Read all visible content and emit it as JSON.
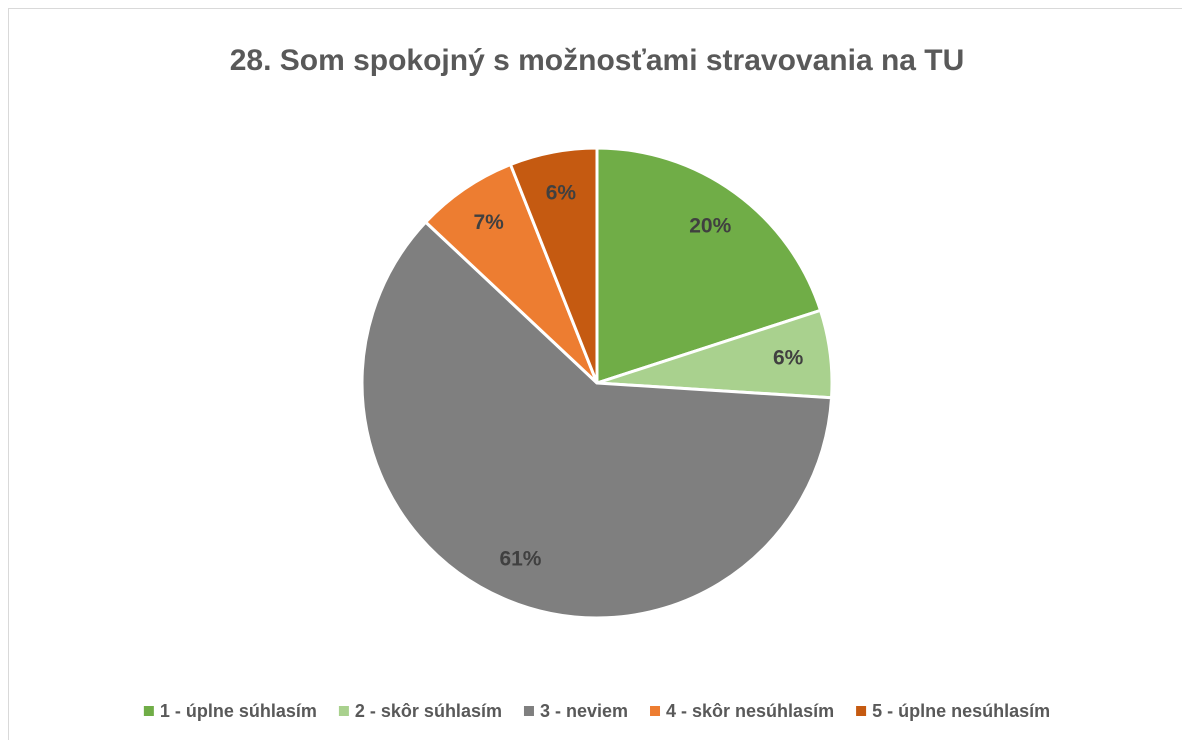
{
  "chart_data": {
    "type": "pie",
    "title": "28. Som spokojný s možnosťami stravovania na TU",
    "categories": [
      "1 - úplne súhlasím",
      "2 - skôr súhlasím",
      "3 - neviem",
      "4 - skôr nesúhlasím",
      "5 - úplne nesúhlasím"
    ],
    "values": [
      20,
      6,
      61,
      7,
      6
    ],
    "value_labels": [
      "20%",
      "6%",
      "61%",
      "7%",
      "6%"
    ],
    "colors": [
      "#70ad47",
      "#a9d18e",
      "#7f7f7f",
      "#ed7d31",
      "#c55a11"
    ],
    "legend": "bottom"
  }
}
